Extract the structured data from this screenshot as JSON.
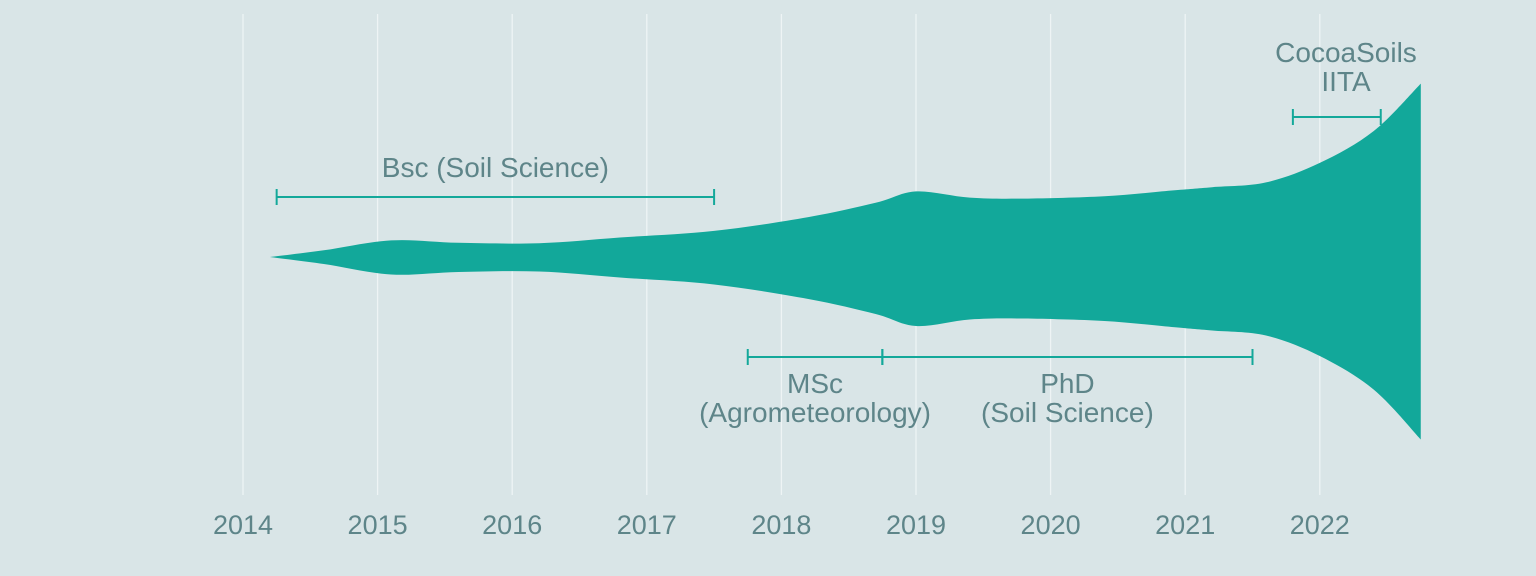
{
  "colors": {
    "background": "#d9e5e7",
    "stream": "#12a89a",
    "range": "#14a89a",
    "text": "#5e8589",
    "grid": "#eef4f5"
  },
  "chart_data": {
    "type": "area",
    "title": "",
    "xlabel": "",
    "ylabel": "",
    "grid": "vertical",
    "xlim": [
      2014,
      2022.75
    ],
    "x_ticks": [
      "2014",
      "2015",
      "2016",
      "2017",
      "2018",
      "2019",
      "2020",
      "2021",
      "2022"
    ],
    "series": [
      {
        "x": [
          2014.2,
          2014.6,
          2015.1,
          2015.6,
          2016.2,
          2016.8,
          2017.5,
          2018.2,
          2018.7,
          2019.0,
          2019.4,
          2019.8,
          2020.4,
          2020.9,
          2021.2,
          2021.6,
          2022.0,
          2022.4,
          2022.75
        ],
        "values": [
          0,
          14,
          35,
          30,
          29,
          41,
          55,
          84,
          114,
          138,
          125,
          123,
          128,
          140,
          147,
          157,
          198,
          265,
          365
        ]
      }
    ],
    "annotations": [
      {
        "lines": [
          "Bsc (Soil Science)"
        ],
        "start": 2014.25,
        "end": 2017.5,
        "side": "above"
      },
      {
        "lines": [
          "MSc",
          "(Agrometeorology)"
        ],
        "start": 2017.75,
        "end": 2018.75,
        "side": "below"
      },
      {
        "lines": [
          "PhD",
          "(Soil Science)"
        ],
        "start": 2018.75,
        "end": 2021.5,
        "side": "below"
      },
      {
        "lines": [
          "CocoaSoils",
          "IITA"
        ],
        "start": 2021.8,
        "end": 2022.75,
        "side": "above"
      }
    ]
  }
}
